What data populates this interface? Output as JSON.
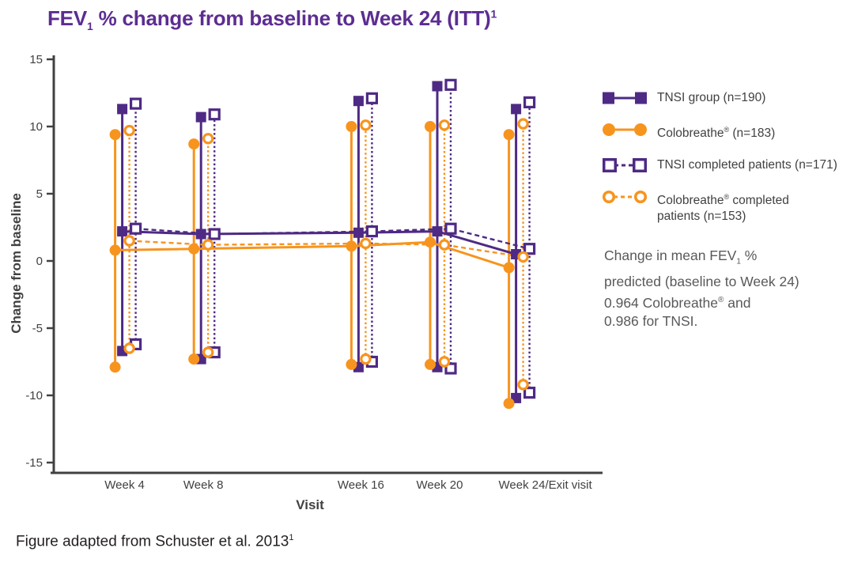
{
  "title": {
    "pre": "FEV",
    "sub": "1",
    "main": " % change from baseline to Week 24 (ITT)",
    "sup": "1"
  },
  "colors": {
    "purple": "#4E2A84",
    "orange": "#F7941E",
    "title_purple": "#5C2D91",
    "axis_gray": "#414042",
    "text_gray": "#58595B",
    "footer_black": "#231F20"
  },
  "chart_data": {
    "type": "line",
    "subtype": "mean-with-range-whiskers",
    "title": "FEV1 % change from baseline to Week 24 (ITT)",
    "xlabel": "Visit",
    "ylabel": "Change from baseline",
    "ylim": [
      -15,
      15
    ],
    "yticks": [
      15,
      10,
      5,
      0,
      -5,
      -10,
      -15
    ],
    "grid": false,
    "legend_position": "right",
    "weeks": [
      4,
      8,
      16,
      20,
      24
    ],
    "categories": [
      "Week 4",
      "Week 8",
      "Week 16",
      "Week 20",
      "Week 24/Exit visit"
    ],
    "series": [
      {
        "name": "TNSI group (n=190)",
        "color": "purple",
        "marker": "square",
        "fill": "filled",
        "line": "solid",
        "mean": [
          2.2,
          2.0,
          2.1,
          2.2,
          0.5
        ],
        "high": [
          11.3,
          10.7,
          11.9,
          13.0,
          11.3
        ],
        "low": [
          -6.7,
          -7.3,
          -7.9,
          -7.9,
          -10.2
        ]
      },
      {
        "name": "Colobreathe® (n=183)",
        "color": "orange",
        "marker": "circle",
        "fill": "filled",
        "line": "solid",
        "mean": [
          0.8,
          0.9,
          1.1,
          1.4,
          -0.5
        ],
        "high": [
          9.4,
          8.7,
          10.0,
          10.0,
          9.4
        ],
        "low": [
          -7.9,
          -7.3,
          -7.7,
          -7.7,
          -10.6
        ]
      },
      {
        "name": "TNSI completed patients (n=171)",
        "color": "purple",
        "marker": "square",
        "fill": "open",
        "line": "dashed",
        "mean": [
          2.4,
          2.0,
          2.2,
          2.4,
          0.9
        ],
        "high": [
          11.7,
          10.9,
          12.1,
          13.1,
          11.8
        ],
        "low": [
          -6.2,
          -6.8,
          -7.5,
          -8.0,
          -9.8
        ]
      },
      {
        "name": "Colobreathe® completed patients (n=153)",
        "color": "orange",
        "marker": "circle",
        "fill": "open",
        "line": "dashed",
        "mean": [
          1.5,
          1.2,
          1.3,
          1.2,
          0.3
        ],
        "high": [
          9.7,
          9.1,
          10.1,
          10.1,
          10.2
        ],
        "low": [
          -6.5,
          -6.8,
          -7.3,
          -7.5,
          -9.2
        ]
      }
    ]
  },
  "legend": {
    "items": [
      {
        "pre": "TNSI group (n=190)",
        "reg": "",
        "post": "",
        "line2": ""
      },
      {
        "pre": "Colobreathe",
        "reg": "®",
        "post": " (n=183)",
        "line2": ""
      },
      {
        "pre": "TNSI completed patients (n=171)",
        "reg": "",
        "post": "",
        "line2": ""
      },
      {
        "pre": "Colobreathe",
        "reg": "®",
        "post": " completed",
        "line2": "patients (n=153)"
      }
    ]
  },
  "annotation": {
    "line1_pre": "Change in mean FEV",
    "line1_sub": "1",
    "line1_post": " %",
    "line2": "predicted (baseline to Week 24)",
    "line3_pre": "0.964 Colobreathe",
    "line3_reg": "®",
    "line3_post": " and",
    "line4": "0.986 for TNSI."
  },
  "footer": {
    "text": "Figure adapted from Schuster et al. 2013",
    "sup": "1"
  }
}
